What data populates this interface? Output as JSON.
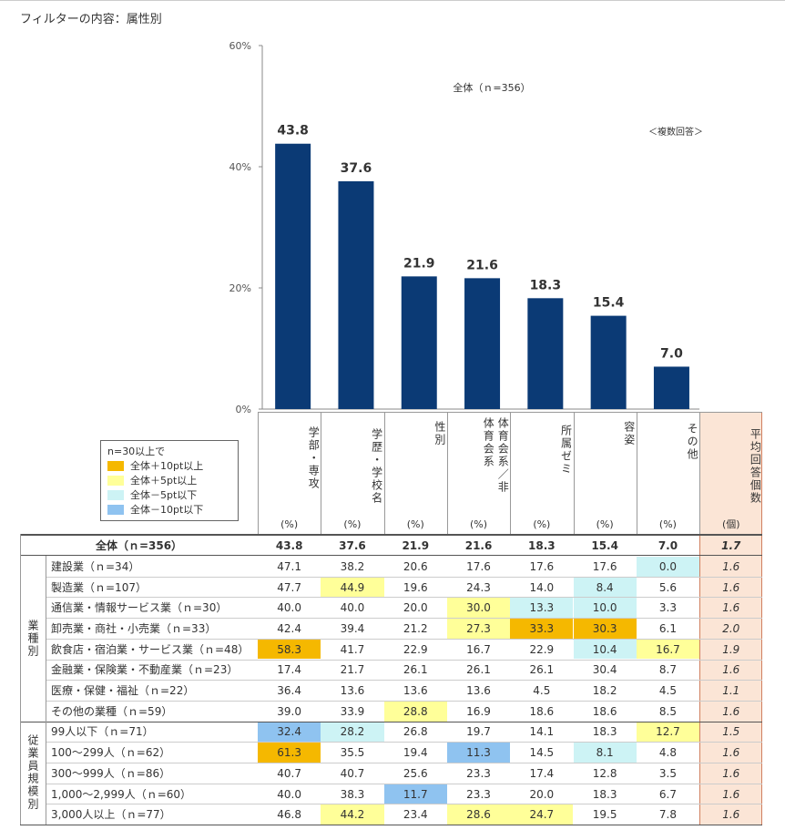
{
  "title": "フィルターの内容：属性別",
  "chart_data": {
    "type": "bar",
    "categories": [
      "学部・専攻",
      "学歴・学校名",
      "性別",
      "体育会系／非体育会系",
      "所属ゼミ",
      "容姿",
      "その他"
    ],
    "values": [
      43.8,
      37.6,
      21.9,
      21.6,
      18.3,
      15.4,
      7.0
    ],
    "value_labels": [
      "43.8",
      "37.6",
      "21.9",
      "21.6",
      "18.3",
      "15.4",
      "7.0"
    ],
    "color": "#0b3a75",
    "ylim": [
      0,
      60
    ],
    "yticks": [
      {
        "value": 0,
        "label": "0%"
      },
      {
        "value": 20,
        "label": "20%"
      },
      {
        "value": 40,
        "label": "40%"
      },
      {
        "value": 60,
        "label": "60%"
      }
    ],
    "annotations": [
      "全体（ｎ=356）",
      "＜複数回答＞"
    ]
  },
  "table": {
    "avg_header": "平均回答個数",
    "avg_fill": "#fbe5d6",
    "units": [
      "(%)",
      "(%)",
      "(%)",
      "(%)",
      "(%)",
      "(%)",
      "(%)",
      "(個)"
    ],
    "legend": {
      "title": "n=30以上で",
      "items": [
        {
          "label": "全体＋10pt以上",
          "color": "#f5b800"
        },
        {
          "label": "全体＋5pt以上",
          "color": "#ffff99"
        },
        {
          "label": "全体－5pt以下",
          "color": "#cdf3f5"
        },
        {
          "label": "全体－10pt以下",
          "color": "#8fc3f0"
        }
      ]
    },
    "total": {
      "label": "全体（ｎ=356）",
      "cells": [
        "43.8",
        "37.6",
        "21.9",
        "21.6",
        "18.3",
        "15.4",
        "7.0",
        "1.7"
      ]
    },
    "groups": [
      {
        "label": "業種別",
        "rows": [
          {
            "label": "建設業（ｎ=34）",
            "cells": [
              "47.1",
              "38.2",
              "20.6",
              "17.6",
              "17.6",
              "17.6",
              "0.0",
              "1.6"
            ],
            "fills": [
              null,
              null,
              null,
              null,
              null,
              null,
              "#cdf3f5",
              null
            ]
          },
          {
            "label": "製造業（ｎ=107）",
            "cells": [
              "47.7",
              "44.9",
              "19.6",
              "24.3",
              "14.0",
              "8.4",
              "5.6",
              "1.6"
            ],
            "fills": [
              null,
              "#ffff99",
              null,
              null,
              null,
              "#cdf3f5",
              null,
              null
            ]
          },
          {
            "label": "通信業・情報サービス業（ｎ=30）",
            "cells": [
              "40.0",
              "40.0",
              "20.0",
              "30.0",
              "13.3",
              "10.0",
              "3.3",
              "1.6"
            ],
            "fills": [
              null,
              null,
              null,
              "#ffff99",
              "#cdf3f5",
              "#cdf3f5",
              null,
              null
            ]
          },
          {
            "label": "卸売業・商社・小売業（ｎ=33）",
            "cells": [
              "42.4",
              "39.4",
              "21.2",
              "27.3",
              "33.3",
              "30.3",
              "6.1",
              "2.0"
            ],
            "fills": [
              null,
              null,
              null,
              "#ffff99",
              "#f5b800",
              "#f5b800",
              null,
              null
            ]
          },
          {
            "label": "飲食店・宿泊業・サービス業（ｎ=48）",
            "cells": [
              "58.3",
              "41.7",
              "22.9",
              "16.7",
              "22.9",
              "10.4",
              "16.7",
              "1.9"
            ],
            "fills": [
              "#f5b800",
              null,
              null,
              null,
              null,
              "#cdf3f5",
              "#ffff99",
              null
            ]
          },
          {
            "label": "金融業・保険業・不動産業（ｎ=23）",
            "cells": [
              "17.4",
              "21.7",
              "26.1",
              "26.1",
              "26.1",
              "30.4",
              "8.7",
              "1.6"
            ],
            "fills": [
              null,
              null,
              null,
              null,
              null,
              null,
              null,
              null
            ]
          },
          {
            "label": "医療・保健・福祉（ｎ=22）",
            "cells": [
              "36.4",
              "13.6",
              "13.6",
              "13.6",
              "4.5",
              "18.2",
              "4.5",
              "1.1"
            ],
            "fills": [
              null,
              null,
              null,
              null,
              null,
              null,
              null,
              null
            ]
          },
          {
            "label": "その他の業種（ｎ=59）",
            "cells": [
              "39.0",
              "33.9",
              "28.8",
              "16.9",
              "18.6",
              "18.6",
              "8.5",
              "1.6"
            ],
            "fills": [
              null,
              null,
              "#ffff99",
              null,
              null,
              null,
              null,
              null
            ]
          }
        ]
      },
      {
        "label": "従業員規模別",
        "rows": [
          {
            "label": "99人以下（ｎ=71）",
            "cells": [
              "32.4",
              "28.2",
              "26.8",
              "19.7",
              "14.1",
              "18.3",
              "12.7",
              "1.5"
            ],
            "fills": [
              "#8fc3f0",
              "#cdf3f5",
              null,
              null,
              null,
              null,
              "#ffff99",
              null
            ]
          },
          {
            "label": "100～299人（ｎ=62）",
            "cells": [
              "61.3",
              "35.5",
              "19.4",
              "11.3",
              "14.5",
              "8.1",
              "4.8",
              "1.6"
            ],
            "fills": [
              "#f5b800",
              null,
              null,
              "#8fc3f0",
              null,
              "#cdf3f5",
              null,
              null
            ]
          },
          {
            "label": "300～999人（ｎ=86）",
            "cells": [
              "40.7",
              "40.7",
              "25.6",
              "23.3",
              "17.4",
              "12.8",
              "3.5",
              "1.6"
            ],
            "fills": [
              null,
              null,
              null,
              null,
              null,
              null,
              null,
              null
            ]
          },
          {
            "label": "1,000～2,999人（ｎ=60）",
            "cells": [
              "40.0",
              "38.3",
              "11.7",
              "23.3",
              "20.0",
              "18.3",
              "6.7",
              "1.6"
            ],
            "fills": [
              null,
              null,
              "#8fc3f0",
              null,
              null,
              null,
              null,
              null
            ]
          },
          {
            "label": "3,000人以上（ｎ=77）",
            "cells": [
              "46.8",
              "44.2",
              "23.4",
              "28.6",
              "24.7",
              "19.5",
              "7.8",
              "1.6"
            ],
            "fills": [
              null,
              "#ffff99",
              null,
              "#ffff99",
              "#ffff99",
              null,
              null,
              null
            ]
          }
        ]
      }
    ]
  }
}
